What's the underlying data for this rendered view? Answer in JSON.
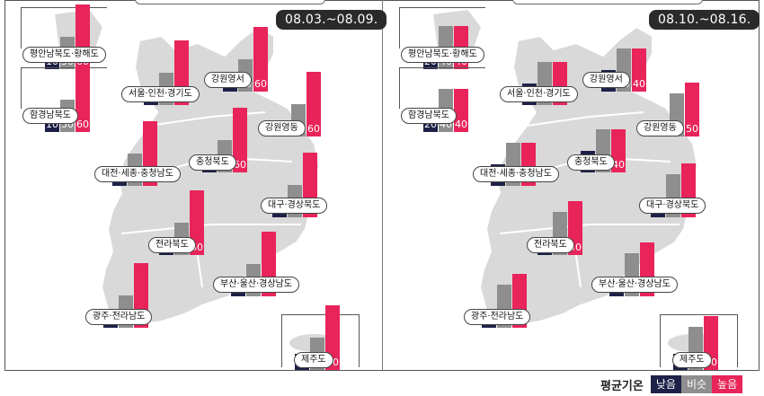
{
  "legend": {
    "title": "평균기온",
    "low": "낮음",
    "similar": "비슷",
    "high": "높음"
  },
  "colors": {
    "low": "#1e2147",
    "similar": "#8e8e8e",
    "high": "#e8245a"
  },
  "panels": [
    {
      "period": "08.03.~08.09.",
      "regions": [
        {
          "name": "평안남북도·황해도",
          "low": "10",
          "similar": "30",
          "high": "60"
        },
        {
          "name": "함경남북도",
          "low": "10",
          "similar": "30",
          "high": "60"
        },
        {
          "name": "서울·인천·경기도",
          "low": "10",
          "similar": "30",
          "high": "60"
        },
        {
          "name": "강원영서",
          "low": "10",
          "similar": "30",
          "high": "60"
        },
        {
          "name": "강원영동",
          "low": "10",
          "similar": "30",
          "high": "60"
        },
        {
          "name": "대전·세종·충청남도",
          "low": "10",
          "similar": "30",
          "high": "60"
        },
        {
          "name": "충청북도",
          "low": "10",
          "similar": "30",
          "high": "60"
        },
        {
          "name": "대구·경상북도",
          "low": "10",
          "similar": "30",
          "high": "60"
        },
        {
          "name": "전라북도",
          "low": "10",
          "similar": "30",
          "high": "60"
        },
        {
          "name": "부산·울산·경상남도",
          "low": "10",
          "similar": "30",
          "high": "60"
        },
        {
          "name": "광주·전라남도",
          "low": "10",
          "similar": "30",
          "high": "60"
        },
        {
          "name": "제주도",
          "low": "10",
          "similar": "30",
          "high": "60"
        }
      ]
    },
    {
      "period": "08.10.~08.16.",
      "regions": [
        {
          "name": "평안남북도·황해도",
          "low": "20",
          "similar": "40",
          "high": "40"
        },
        {
          "name": "함경남북도",
          "low": "20",
          "similar": "40",
          "high": "40"
        },
        {
          "name": "서울·인천·경기도",
          "low": "20",
          "similar": "40",
          "high": "40"
        },
        {
          "name": "강원영서",
          "low": "20",
          "similar": "40",
          "high": "40"
        },
        {
          "name": "강원영동",
          "low": "10",
          "similar": "40",
          "high": "50"
        },
        {
          "name": "대전·세종·충청남도",
          "low": "20",
          "similar": "40",
          "high": "40"
        },
        {
          "name": "충청북도",
          "low": "20",
          "similar": "40",
          "high": "40"
        },
        {
          "name": "대구·경상북도",
          "low": "10",
          "similar": "40",
          "high": "50"
        },
        {
          "name": "전라북도",
          "low": "10",
          "similar": "40",
          "high": "50"
        },
        {
          "name": "부산·울산·경상남도",
          "low": "10",
          "similar": "40",
          "high": "50"
        },
        {
          "name": "광주·전라남도",
          "low": "10",
          "similar": "40",
          "high": "50"
        },
        {
          "name": "제주도",
          "low": "10",
          "similar": "40",
          "high": "50"
        }
      ]
    }
  ]
}
